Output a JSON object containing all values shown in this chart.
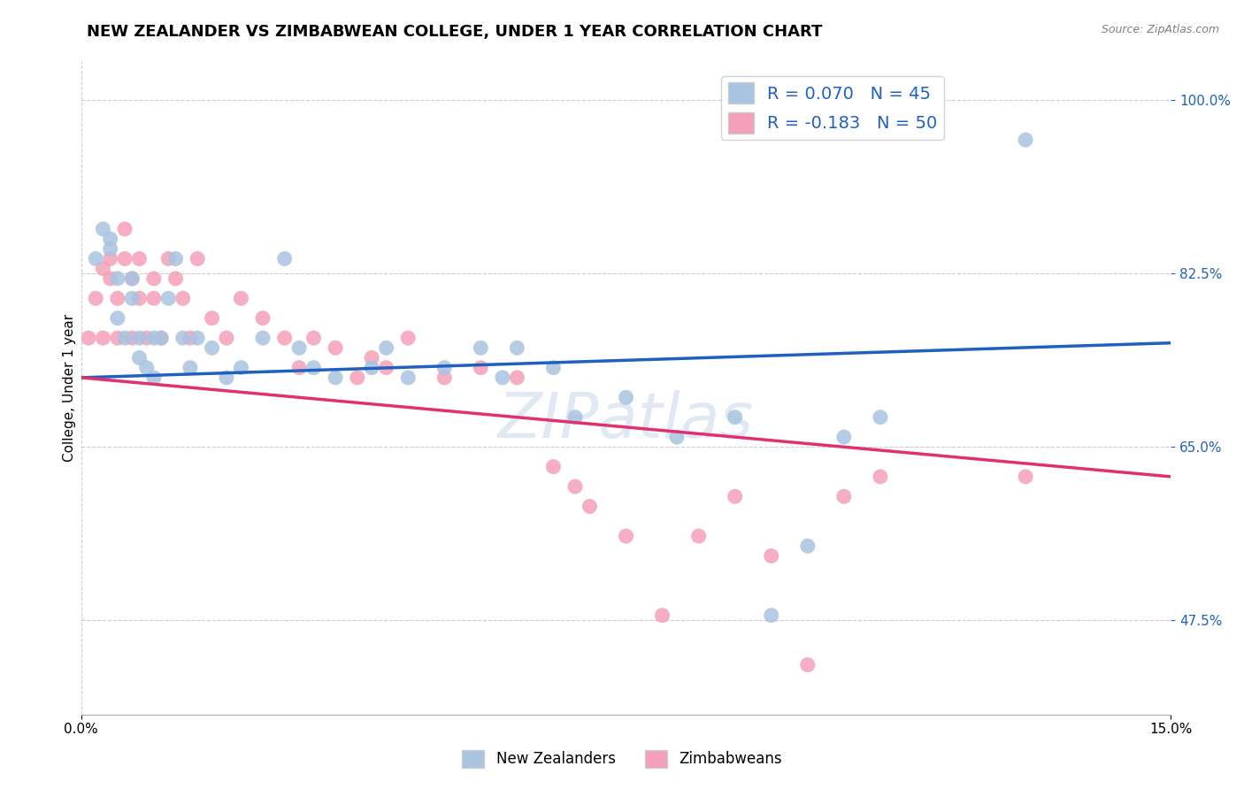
{
  "title": "NEW ZEALANDER VS ZIMBABWEAN COLLEGE, UNDER 1 YEAR CORRELATION CHART",
  "source": "Source: ZipAtlas.com",
  "ylabel_label": "College, Under 1 year",
  "legend_labels": [
    "New Zealanders",
    "Zimbabweans"
  ],
  "r_nz": 0.07,
  "n_nz": 45,
  "r_zw": -0.183,
  "n_zw": 50,
  "nz_color": "#a8c4e0",
  "zw_color": "#f4a0b8",
  "nz_line_color": "#2060c0",
  "zw_line_color": "#e03070",
  "watermark": "ZIPatlas",
  "nz_x": [
    0.002,
    0.003,
    0.004,
    0.004,
    0.005,
    0.005,
    0.006,
    0.007,
    0.007,
    0.008,
    0.008,
    0.009,
    0.01,
    0.01,
    0.011,
    0.012,
    0.013,
    0.014,
    0.015,
    0.016,
    0.018,
    0.02,
    0.022,
    0.025,
    0.028,
    0.03,
    0.032,
    0.035,
    0.04,
    0.042,
    0.045,
    0.05,
    0.055,
    0.058,
    0.06,
    0.065,
    0.068,
    0.075,
    0.082,
    0.09,
    0.095,
    0.1,
    0.105,
    0.11,
    0.13
  ],
  "nz_y": [
    0.84,
    0.87,
    0.86,
    0.85,
    0.82,
    0.78,
    0.76,
    0.8,
    0.82,
    0.76,
    0.74,
    0.73,
    0.76,
    0.72,
    0.76,
    0.8,
    0.84,
    0.76,
    0.73,
    0.76,
    0.75,
    0.72,
    0.73,
    0.76,
    0.84,
    0.75,
    0.73,
    0.72,
    0.73,
    0.75,
    0.72,
    0.73,
    0.75,
    0.72,
    0.75,
    0.73,
    0.68,
    0.7,
    0.66,
    0.68,
    0.48,
    0.55,
    0.66,
    0.68,
    0.96
  ],
  "zw_x": [
    0.001,
    0.002,
    0.003,
    0.003,
    0.004,
    0.004,
    0.005,
    0.005,
    0.006,
    0.006,
    0.007,
    0.007,
    0.008,
    0.008,
    0.009,
    0.01,
    0.01,
    0.011,
    0.012,
    0.013,
    0.014,
    0.015,
    0.016,
    0.018,
    0.02,
    0.022,
    0.025,
    0.028,
    0.03,
    0.032,
    0.035,
    0.038,
    0.04,
    0.042,
    0.045,
    0.05,
    0.055,
    0.06,
    0.065,
    0.068,
    0.07,
    0.075,
    0.08,
    0.085,
    0.09,
    0.095,
    0.1,
    0.105,
    0.11,
    0.13
  ],
  "zw_y": [
    0.76,
    0.8,
    0.83,
    0.76,
    0.82,
    0.84,
    0.8,
    0.76,
    0.87,
    0.84,
    0.82,
    0.76,
    0.8,
    0.84,
    0.76,
    0.82,
    0.8,
    0.76,
    0.84,
    0.82,
    0.8,
    0.76,
    0.84,
    0.78,
    0.76,
    0.8,
    0.78,
    0.76,
    0.73,
    0.76,
    0.75,
    0.72,
    0.74,
    0.73,
    0.76,
    0.72,
    0.73,
    0.72,
    0.63,
    0.61,
    0.59,
    0.56,
    0.48,
    0.56,
    0.6,
    0.54,
    0.43,
    0.6,
    0.62,
    0.62
  ],
  "xlim": [
    0.0,
    0.15
  ],
  "ylim": [
    0.38,
    1.04
  ],
  "y_ticks": [
    0.475,
    0.65,
    0.825,
    1.0
  ],
  "x_ticks": [
    0.0,
    0.15
  ],
  "nz_line_x0": 0.0,
  "nz_line_y0": 0.72,
  "nz_line_x1": 0.15,
  "nz_line_y1": 0.755,
  "zw_line_x0": 0.0,
  "zw_line_y0": 0.72,
  "zw_line_x1": 0.15,
  "zw_line_y1": 0.62,
  "grid_color": "#cccccc",
  "title_fontsize": 13,
  "axis_label_fontsize": 11,
  "tick_fontsize": 11,
  "legend_fontsize": 14
}
